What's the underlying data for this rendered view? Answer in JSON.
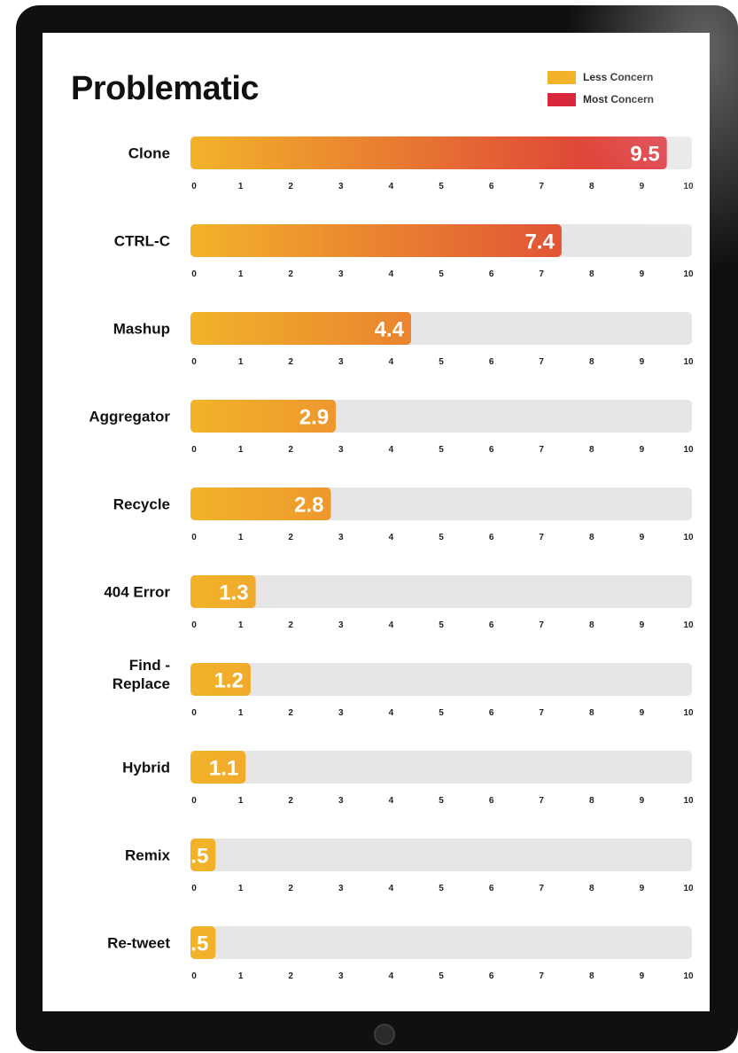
{
  "chart_data": {
    "type": "bar",
    "orientation": "horizontal",
    "title": "Problematic",
    "categories": [
      "Clone",
      "CTRL-C",
      "Mashup",
      "Aggregator",
      "Recycle",
      "404 Error",
      "Find - Replace",
      "Hybrid",
      "Remix",
      "Re-tweet"
    ],
    "category_lines": [
      [
        "Clone"
      ],
      [
        "CTRL-C"
      ],
      [
        "Mashup"
      ],
      [
        "Aggregator"
      ],
      [
        "Recycle"
      ],
      [
        "404 Error"
      ],
      [
        "Find -",
        "Replace"
      ],
      [
        "Hybrid"
      ],
      [
        "Remix"
      ],
      [
        "Re-tweet"
      ]
    ],
    "values": [
      9.5,
      7.4,
      4.4,
      2.9,
      2.8,
      1.3,
      1.2,
      1.1,
      0.5,
      0.5
    ],
    "value_labels": [
      "9.5",
      "7.4",
      "4.4",
      "2.9",
      "2.8",
      "1.3",
      "1.2",
      "1.1",
      ".5",
      ".5"
    ],
    "xlim": [
      0,
      10
    ],
    "ticks": [
      "0",
      "1",
      "2",
      "3",
      "4",
      "5",
      "6",
      "7",
      "8",
      "9",
      "10"
    ],
    "legend": {
      "position": "top-right",
      "items": [
        {
          "label": "Less Concern",
          "color": "#F2B32A"
        },
        {
          "label": "Most Concern",
          "color": "#D9273C"
        }
      ]
    },
    "colors": {
      "low": "#F2B32A",
      "high": "#D9273C",
      "track": "#E6E6E6"
    }
  }
}
